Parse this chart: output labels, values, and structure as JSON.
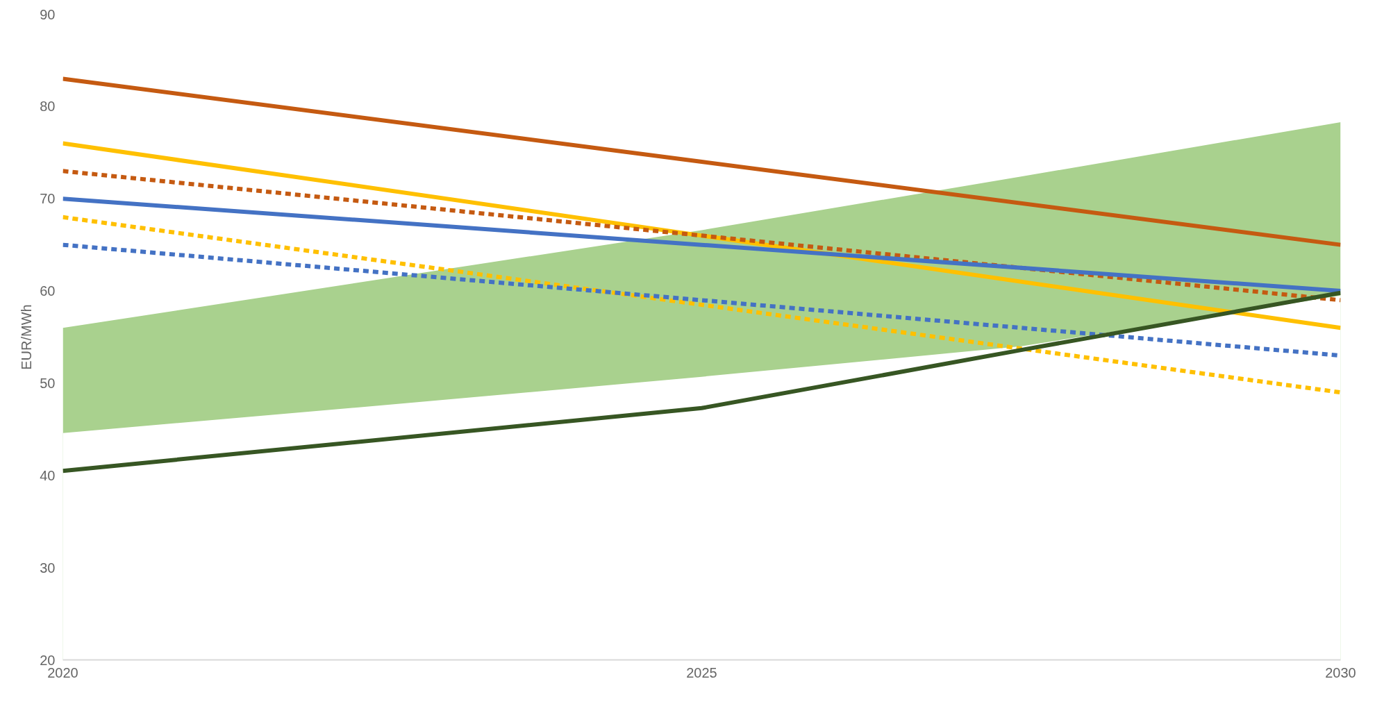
{
  "chart_data": {
    "type": "line",
    "ylabel": "EUR/MWh",
    "xlim": [
      2020,
      2030
    ],
    "xticks": [
      2020,
      2025,
      2030
    ],
    "ylim": [
      20,
      90
    ],
    "yticks": [
      20,
      30,
      40,
      50,
      60,
      70,
      80,
      90
    ],
    "x": [
      2020,
      2025,
      2030
    ],
    "series": [
      {
        "type": "area",
        "color": "#a9d18e",
        "x": [
          2020,
          2022.5,
          2025,
          2027.5,
          2030
        ],
        "values": [
          56,
          61.3,
          66.6,
          72.4,
          78.3
        ]
      },
      {
        "type": "area",
        "color": "#ffffff",
        "x": [
          2020,
          2022.5,
          2025,
          2027.5,
          2030
        ],
        "values": [
          44.6,
          47.6,
          50.7,
          54,
          59.5
        ]
      },
      {
        "color": "#c55a11",
        "values": [
          83,
          74,
          65
        ],
        "line_style": "solid"
      },
      {
        "color": "#ffc000",
        "values": [
          76,
          66,
          56
        ],
        "line_style": "solid"
      },
      {
        "color": "#c55a11",
        "values": [
          73,
          66,
          59
        ],
        "line_style": "dashed"
      },
      {
        "color": "#4472c4",
        "values": [
          70,
          65,
          60
        ],
        "line_style": "solid"
      },
      {
        "color": "#ffc000",
        "values": [
          68,
          58.5,
          49
        ],
        "line_style": "dashed"
      },
      {
        "color": "#4472c4",
        "values": [
          65,
          59,
          53
        ],
        "line_style": "dashed"
      },
      {
        "color": "#375623",
        "x": [
          2020,
          2025,
          2027.5,
          2030
        ],
        "values": [
          40.5,
          47.3,
          53.6,
          59.8
        ],
        "line_style": "solid"
      }
    ]
  }
}
